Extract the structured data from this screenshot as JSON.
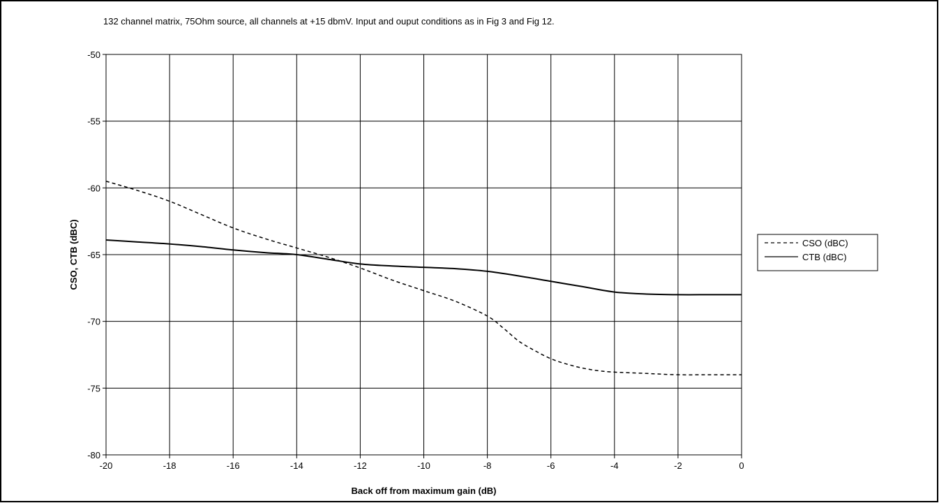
{
  "chart_data": {
    "type": "line",
    "title": "132 channel matrix, 75Ohm source, all channels at +15 dbmV. Input and ouput conditions as in Fig 3 and Fig 12.",
    "xlabel": "Back off from maximum gain (dB)",
    "ylabel": "CSO, CTB (dBC)",
    "xlim": [
      -20,
      0
    ],
    "ylim": [
      -80,
      -50
    ],
    "xticks": [
      "-20",
      "-18",
      "-16",
      "-14",
      "-12",
      "-10",
      "-8",
      "-6",
      "-4",
      "-2",
      "0"
    ],
    "yticks": [
      "-50",
      "-55",
      "-60",
      "-65",
      "-70",
      "-75",
      "-80"
    ],
    "grid": true,
    "legend_position": "right",
    "series": [
      {
        "name": "CSO (dBC)",
        "style": "dashed",
        "color": "#000000",
        "x": [
          -20,
          -19,
          -18,
          -17,
          -16,
          -15,
          -14,
          -13,
          -12,
          -11,
          -10,
          -9,
          -8,
          -7.5,
          -7,
          -6.5,
          -6,
          -5.5,
          -5,
          -4.5,
          -4,
          -3,
          -2,
          -1,
          0
        ],
        "y": [
          -59.5,
          -60.2,
          -61.0,
          -62.0,
          -63.0,
          -63.8,
          -64.5,
          -65.2,
          -66.0,
          -66.9,
          -67.7,
          -68.5,
          -69.6,
          -70.5,
          -71.5,
          -72.2,
          -72.8,
          -73.2,
          -73.5,
          -73.7,
          -73.8,
          -73.9,
          -74.0,
          -74.0,
          -74.0
        ]
      },
      {
        "name": "CTB  (dBC)",
        "style": "solid",
        "color": "#000000",
        "x": [
          -20,
          -19,
          -18,
          -17,
          -16,
          -15,
          -14,
          -13,
          -12,
          -11,
          -10,
          -9,
          -8,
          -7,
          -6,
          -5,
          -4,
          -3,
          -2,
          -1,
          0
        ],
        "y": [
          -63.9,
          -64.05,
          -64.2,
          -64.4,
          -64.65,
          -64.85,
          -65.0,
          -65.35,
          -65.7,
          -65.85,
          -65.95,
          -66.05,
          -66.25,
          -66.6,
          -67.0,
          -67.4,
          -67.8,
          -67.95,
          -68.0,
          -68.0,
          -68.0
        ]
      }
    ]
  }
}
